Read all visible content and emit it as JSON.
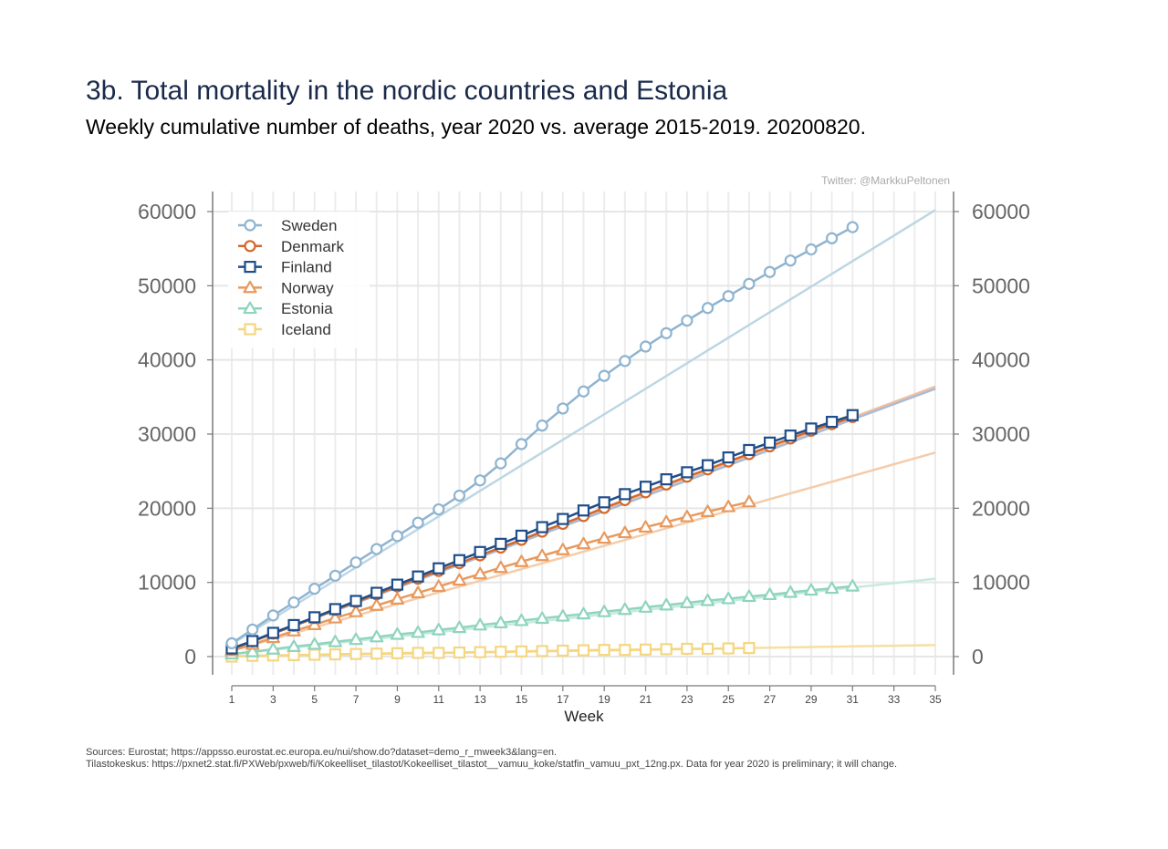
{
  "header": {
    "title": "3b. Total mortality in the nordic countries and Estonia",
    "subtitle": "Weekly cumulative number of deaths, year 2020 vs. average 2015-2019. 20200820.",
    "credit": "Twitter: @MarkkuPeltonen"
  },
  "footer": {
    "source_line_1": "Sources: Eurostat; https://appsso.eurostat.ec.europa.eu/nui/show.do?dataset=demo_r_mweek3&lang=en.",
    "source_line_2": "Tilastokeskus: https://pxnet2.stat.fi/PXWeb/pxweb/fi/Kokeelliset_tilastot/Kokeelliset_tilastot__vamuu_koke/statfin_vamuu_pxt_12ng.px. Data for year 2020 is preliminary; it will change."
  },
  "chart_data": {
    "type": "line",
    "title": "3b. Total mortality in the nordic countries and Estonia",
    "subtitle": "Weekly cumulative number of deaths, year 2020 vs. average 2015-2019. 20200820.",
    "xlabel": "Week",
    "ylabel": "",
    "xlim": [
      1,
      35
    ],
    "ylim": [
      -1500,
      61500
    ],
    "x_ticks": [
      1,
      3,
      5,
      7,
      9,
      11,
      13,
      15,
      17,
      19,
      21,
      23,
      25,
      27,
      29,
      31,
      33,
      35
    ],
    "y_ticks": [
      0,
      10000,
      20000,
      30000,
      40000,
      50000,
      60000
    ],
    "y_axis_sides": "left-and-right",
    "grid": true,
    "legend_position": "top-left",
    "series": [
      {
        "name": "Sweden",
        "color": "#8fb4d0",
        "marker": "circle",
        "x": [
          1,
          2,
          3,
          4,
          5,
          6,
          7,
          8,
          9,
          10,
          11,
          12,
          13,
          14,
          15,
          16,
          17,
          18,
          19,
          20,
          21,
          22,
          23,
          24,
          25,
          26,
          27,
          28,
          29,
          30,
          31
        ],
        "values": [
          1800,
          3650,
          5550,
          7300,
          9150,
          10900,
          12700,
          14500,
          16250,
          18050,
          19850,
          21700,
          23750,
          26050,
          28650,
          31150,
          33450,
          35750,
          37850,
          39850,
          41800,
          43600,
          45300,
          47000,
          48600,
          50250,
          51850,
          53400,
          54900,
          56400,
          57900
        ]
      },
      {
        "name": "Denmark",
        "color": "#d4682a",
        "marker": "circle",
        "x": [
          1,
          2,
          3,
          4,
          5,
          6,
          7,
          8,
          9,
          10,
          11,
          12,
          13,
          14,
          15,
          16,
          17,
          18,
          19,
          20,
          21,
          22,
          23,
          24,
          25,
          26,
          27,
          28,
          29,
          30,
          31
        ],
        "values": [
          1000,
          2050,
          3100,
          4150,
          5200,
          6300,
          7350,
          8400,
          9450,
          10500,
          11550,
          12600,
          13650,
          14700,
          15750,
          16850,
          17900,
          18950,
          20050,
          21100,
          22150,
          23200,
          24250,
          25250,
          26300,
          27300,
          28350,
          29400,
          30450,
          31350,
          32300
        ]
      },
      {
        "name": "Finland",
        "color": "#1f4e8a",
        "marker": "square",
        "x": [
          1,
          2,
          3,
          4,
          5,
          6,
          7,
          8,
          9,
          10,
          11,
          12,
          13,
          14,
          15,
          16,
          17,
          18,
          19,
          20,
          21,
          22,
          23,
          24,
          25,
          26,
          27,
          28,
          29,
          30,
          31
        ],
        "values": [
          1100,
          2100,
          3200,
          4250,
          5300,
          6400,
          7500,
          8600,
          9700,
          10800,
          11900,
          13000,
          14100,
          15200,
          16300,
          17450,
          18550,
          19700,
          20800,
          21900,
          22900,
          23900,
          24850,
          25800,
          26850,
          27850,
          28850,
          29800,
          30750,
          31650,
          32550
        ]
      },
      {
        "name": "Norway",
        "color": "#e89a5e",
        "marker": "triangle",
        "x": [
          1,
          2,
          3,
          4,
          5,
          6,
          7,
          8,
          9,
          10,
          11,
          12,
          13,
          14,
          15,
          16,
          17,
          18,
          19,
          20,
          21,
          22,
          23,
          24,
          25,
          26
        ],
        "values": [
          800,
          1650,
          2550,
          3450,
          4300,
          5200,
          6050,
          6900,
          7750,
          8600,
          9450,
          10300,
          11150,
          12000,
          12800,
          13600,
          14400,
          15200,
          15950,
          16700,
          17450,
          18150,
          18850,
          19550,
          20200,
          20850
        ]
      },
      {
        "name": "Estonia",
        "color": "#8fd4bf",
        "marker": "triangle",
        "x": [
          1,
          2,
          3,
          4,
          5,
          6,
          7,
          8,
          9,
          10,
          11,
          12,
          13,
          14,
          15,
          16,
          17,
          18,
          19,
          20,
          21,
          22,
          23,
          24,
          25,
          26,
          27,
          28,
          29,
          30,
          31
        ],
        "values": [
          350,
          650,
          1000,
          1350,
          1650,
          2000,
          2300,
          2650,
          3000,
          3250,
          3600,
          3900,
          4250,
          4550,
          4850,
          5150,
          5450,
          5750,
          6050,
          6350,
          6650,
          6950,
          7250,
          7550,
          7800,
          8100,
          8350,
          8650,
          8950,
          9200,
          9500
        ]
      },
      {
        "name": "Iceland",
        "color": "#f5d680",
        "marker": "square",
        "x": [
          1,
          2,
          3,
          4,
          5,
          6,
          7,
          8,
          9,
          10,
          11,
          12,
          13,
          14,
          15,
          16,
          17,
          18,
          19,
          20,
          21,
          22,
          23,
          24,
          25,
          26
        ],
        "values": [
          0,
          100,
          150,
          200,
          250,
          300,
          350,
          400,
          450,
          500,
          500,
          550,
          600,
          650,
          700,
          750,
          800,
          850,
          900,
          900,
          950,
          1000,
          1050,
          1050,
          1100,
          1150
        ]
      }
    ],
    "average_2015_2019": [
      {
        "name": "Sweden",
        "color": "#bcd6e4",
        "start": [
          1,
          1700
        ],
        "end": [
          35,
          60200
        ]
      },
      {
        "name": "Denmark",
        "color": "#f2bfa0",
        "start": [
          1,
          1000
        ],
        "end": [
          35,
          36400
        ]
      },
      {
        "name": "Finland",
        "color": "#a9bcd4",
        "start": [
          1,
          1050
        ],
        "end": [
          35,
          36100
        ]
      },
      {
        "name": "Norway",
        "color": "#f5ccaa",
        "start": [
          1,
          800
        ],
        "end": [
          35,
          27500
        ]
      },
      {
        "name": "Estonia",
        "color": "#c6eadf",
        "start": [
          1,
          300
        ],
        "end": [
          35,
          10500
        ]
      },
      {
        "name": "Iceland",
        "color": "#f7dfa0",
        "start": [
          1,
          40
        ],
        "end": [
          35,
          1550
        ]
      }
    ]
  }
}
